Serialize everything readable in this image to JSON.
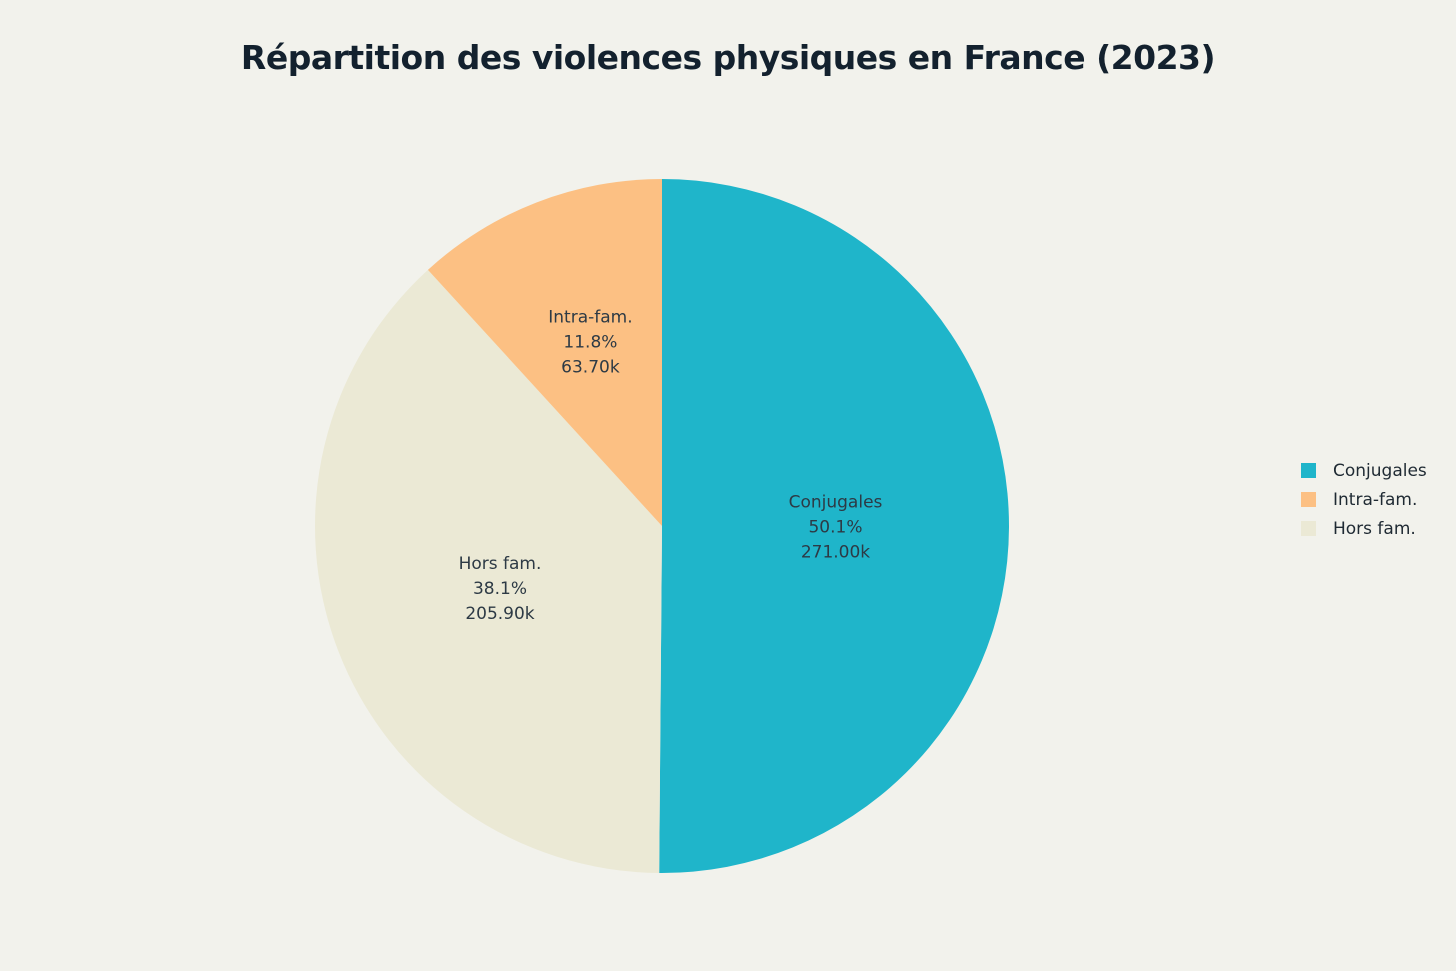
{
  "chart_data": {
    "type": "pie",
    "title": "Répartition des violences physiques en France (2023)",
    "slices": [
      {
        "name": "Conjugales",
        "pct_label": "50.1%",
        "value_label": "271.00k",
        "value": 271.0,
        "color": "#1fb5ca"
      },
      {
        "name": "Hors fam.",
        "pct_label": "38.1%",
        "value_label": "205.90k",
        "value": 205.9,
        "color": "#ebe9d5"
      },
      {
        "name": "Intra-fam.",
        "pct_label": "11.8%",
        "value_label": "63.70k",
        "value": 63.7,
        "color": "#fcc083"
      }
    ],
    "legend": {
      "placement": "right",
      "items": [
        {
          "label": "Conjugales",
          "color": "#1fb5ca"
        },
        {
          "label": "Intra-fam.",
          "color": "#fcc083"
        },
        {
          "label": "Hors fam.",
          "color": "#ebe9d5"
        }
      ]
    }
  }
}
